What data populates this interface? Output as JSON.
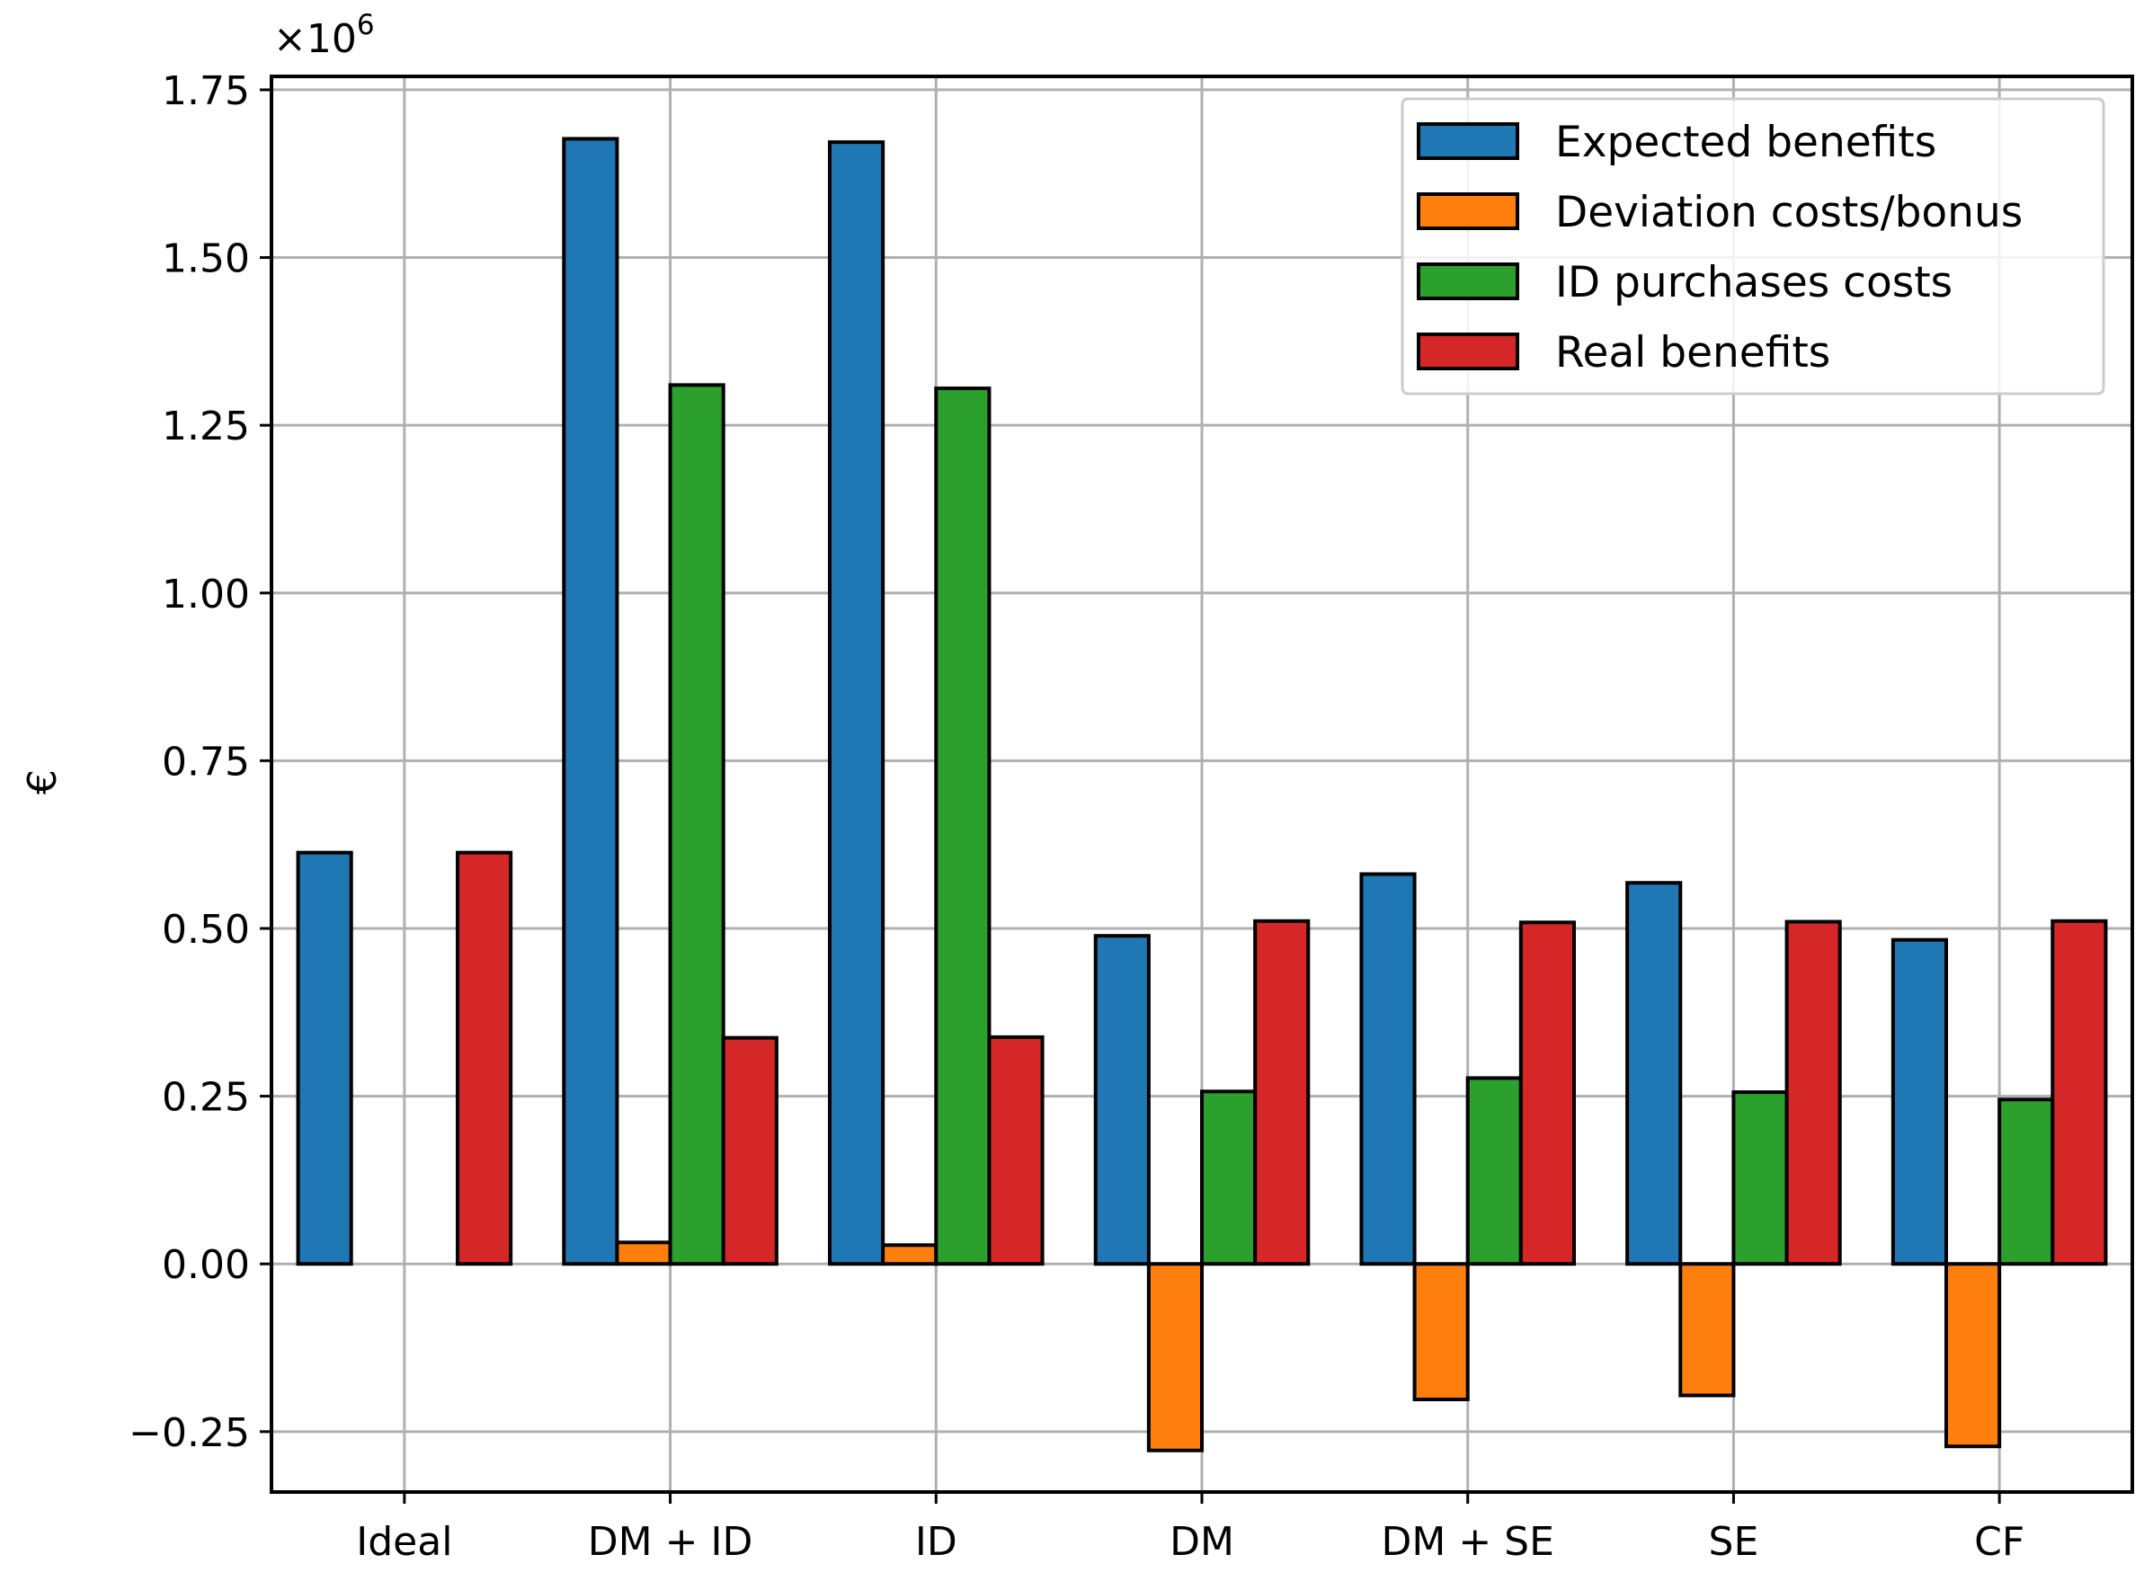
{
  "chart_data": {
    "type": "bar",
    "title": "",
    "xlabel": "",
    "ylabel": "€",
    "y_multiplier_base": "×10",
    "y_multiplier_exp": "6",
    "ylim": [
      -0.34,
      1.77
    ],
    "y_ticks": [
      -0.25,
      0.0,
      0.25,
      0.5,
      0.75,
      1.0,
      1.25,
      1.5,
      1.75
    ],
    "y_tick_labels": [
      "−0.25",
      "0.00",
      "0.25",
      "0.50",
      "0.75",
      "1.00",
      "1.25",
      "1.50",
      "1.75"
    ],
    "grid": true,
    "legend_position": "top-right",
    "categories": [
      "Ideal",
      "DM + ID",
      "ID",
      "DM",
      "DM + SE",
      "SE",
      "CF"
    ],
    "series": [
      {
        "name": "Expected benefits",
        "color": "#1f77b4",
        "values": [
          0.613,
          1.677,
          1.672,
          0.489,
          0.581,
          0.568,
          0.483
        ]
      },
      {
        "name": "Deviation costs/bonus",
        "color": "#ff7f0e",
        "values": [
          0.0,
          0.032,
          0.028,
          -0.278,
          -0.202,
          -0.196,
          -0.272
        ]
      },
      {
        "name": "ID purchases costs",
        "color": "#2ca02c",
        "values": [
          0.0,
          1.31,
          1.305,
          0.257,
          0.277,
          0.256,
          0.245
        ]
      },
      {
        "name": "Real benefits",
        "color": "#d62728",
        "values": [
          0.613,
          0.337,
          0.338,
          0.511,
          0.509,
          0.51,
          0.511
        ]
      }
    ]
  }
}
